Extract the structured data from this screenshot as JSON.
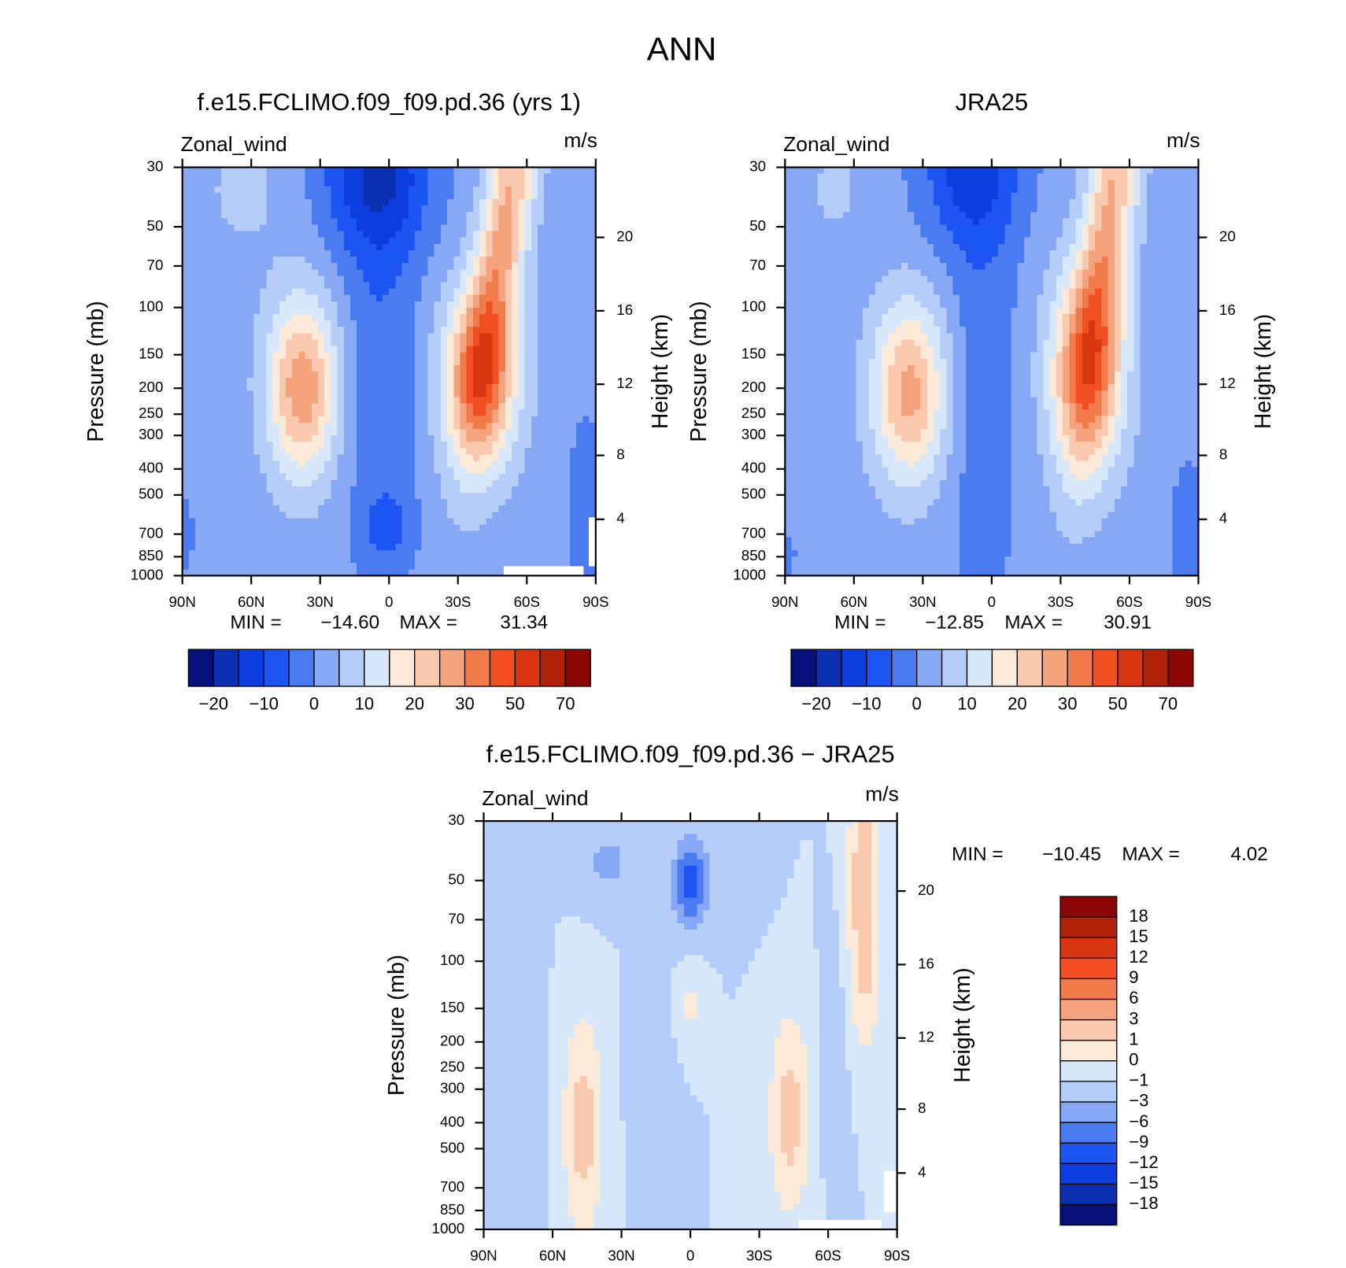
{
  "title": "ANN",
  "chart_data": [
    {
      "type": "contour",
      "title": "f.e15.FCLIMO.f09_f09.pd.36 (yrs 1)",
      "subtitle": "Zonal_wind",
      "units": "m/s",
      "ylabel": "Pressure (mb)",
      "y2label": "Height (km)",
      "xlim": [
        90,
        -90
      ],
      "xticks": [
        {
          "value": 90,
          "label": "90N"
        },
        {
          "value": 60,
          "label": "60N"
        },
        {
          "value": 30,
          "label": "30N"
        },
        0,
        {
          "value": -30,
          "label": "30S"
        },
        {
          "value": -60,
          "label": "60S"
        },
        {
          "value": -90,
          "label": "90S"
        }
      ],
      "ylim": [
        1000,
        30
      ],
      "ylog": true,
      "yticks": [
        30,
        50,
        70,
        100,
        150,
        200,
        250,
        300,
        400,
        500,
        700,
        850,
        1000
      ],
      "y2ticks": [
        4,
        8,
        12,
        16,
        20
      ],
      "min_text": "MIN =",
      "min": {
        "value": -14.6,
        "label": "−14.60"
      },
      "max_text": "MAX =",
      "max": 31.34,
      "colorbar": {
        "orientation": "horizontal",
        "colors": [
          "#06107a",
          "#0a2fb0",
          "#0c3de0",
          "#1d55f2",
          "#4a7bf0",
          "#86a8f5",
          "#b5cdf9",
          "#d8e8fb",
          "#fde9d7",
          "#f9c8ad",
          "#f5a37c",
          "#f27b4c",
          "#f24f22",
          "#d93510",
          "#b0220a",
          "#8b0505"
        ],
        "ticks": [
          {
            "value": -20,
            "label": "−20"
          },
          {
            "value": -10,
            "label": "−10"
          },
          0,
          10,
          20,
          30,
          50,
          70
        ]
      }
    },
    {
      "type": "contour",
      "title": "JRA25",
      "subtitle": "Zonal_wind",
      "units": "m/s",
      "ylabel": "Pressure (mb)",
      "y2label": "Height (km)",
      "xlim": [
        90,
        -90
      ],
      "xticks": [
        {
          "value": 90,
          "label": "90N"
        },
        {
          "value": 60,
          "label": "60N"
        },
        {
          "value": 30,
          "label": "30N"
        },
        0,
        {
          "value": -30,
          "label": "30S"
        },
        {
          "value": -60,
          "label": "60S"
        },
        {
          "value": -90,
          "label": "90S"
        }
      ],
      "ylim": [
        1000,
        30
      ],
      "ylog": true,
      "yticks": [
        30,
        50,
        70,
        100,
        150,
        200,
        250,
        300,
        400,
        500,
        700,
        850,
        1000
      ],
      "y2ticks": [
        4,
        8,
        12,
        16,
        20
      ],
      "min_text": "MIN =",
      "min": {
        "value": -12.85,
        "label": "−12.85"
      },
      "max_text": "MAX =",
      "max": 30.91,
      "colorbar": {
        "orientation": "horizontal",
        "colors": [
          "#06107a",
          "#0a2fb0",
          "#0c3de0",
          "#1d55f2",
          "#4a7bf0",
          "#86a8f5",
          "#b5cdf9",
          "#d8e8fb",
          "#fde9d7",
          "#f9c8ad",
          "#f5a37c",
          "#f27b4c",
          "#f24f22",
          "#d93510",
          "#b0220a",
          "#8b0505"
        ],
        "ticks": [
          {
            "value": -20,
            "label": "−20"
          },
          {
            "value": -10,
            "label": "−10"
          },
          0,
          10,
          20,
          30,
          50,
          70
        ]
      }
    },
    {
      "type": "contour",
      "title": "f.e15.FCLIMO.f09_f09.pd.36 − JRA25",
      "subtitle": "Zonal_wind",
      "units": "m/s",
      "ylabel": "Pressure (mb)",
      "y2label": "Height (km)",
      "xlim": [
        90,
        -90
      ],
      "xticks": [
        {
          "value": 90,
          "label": "90N"
        },
        {
          "value": 60,
          "label": "60N"
        },
        {
          "value": 30,
          "label": "30N"
        },
        0,
        {
          "value": -30,
          "label": "30S"
        },
        {
          "value": -60,
          "label": "60S"
        },
        {
          "value": -90,
          "label": "90S"
        }
      ],
      "ylim": [
        1000,
        30
      ],
      "ylog": true,
      "yticks": [
        30,
        50,
        70,
        100,
        150,
        200,
        250,
        300,
        400,
        500,
        700,
        850,
        1000
      ],
      "y2ticks": [
        4,
        8,
        12,
        16,
        20
      ],
      "min_text": "MIN =",
      "min": {
        "value": -10.45,
        "label": "−10.45"
      },
      "max_text": "MAX =",
      "max": 4.02,
      "colorbar": {
        "orientation": "vertical",
        "colors": [
          "#06107a",
          "#0a2fb0",
          "#0c3de0",
          "#1d55f2",
          "#4a7bf0",
          "#86a8f5",
          "#b5cdf9",
          "#d8e8fb",
          "#fde9d7",
          "#f9c8ad",
          "#f5a37c",
          "#f27b4c",
          "#f24f22",
          "#d93510",
          "#b0220a",
          "#8b0505"
        ],
        "ticks": [
          {
            "value": -18,
            "label": "−18"
          },
          {
            "value": -15,
            "label": "−15"
          },
          {
            "value": -12,
            "label": "−12"
          },
          {
            "value": -9,
            "label": "−9"
          },
          {
            "value": -6,
            "label": "−6"
          },
          {
            "value": -3,
            "label": "−3"
          },
          {
            "value": -1,
            "label": "−1"
          },
          0,
          1,
          3,
          6,
          9,
          12,
          15,
          18
        ]
      }
    }
  ]
}
